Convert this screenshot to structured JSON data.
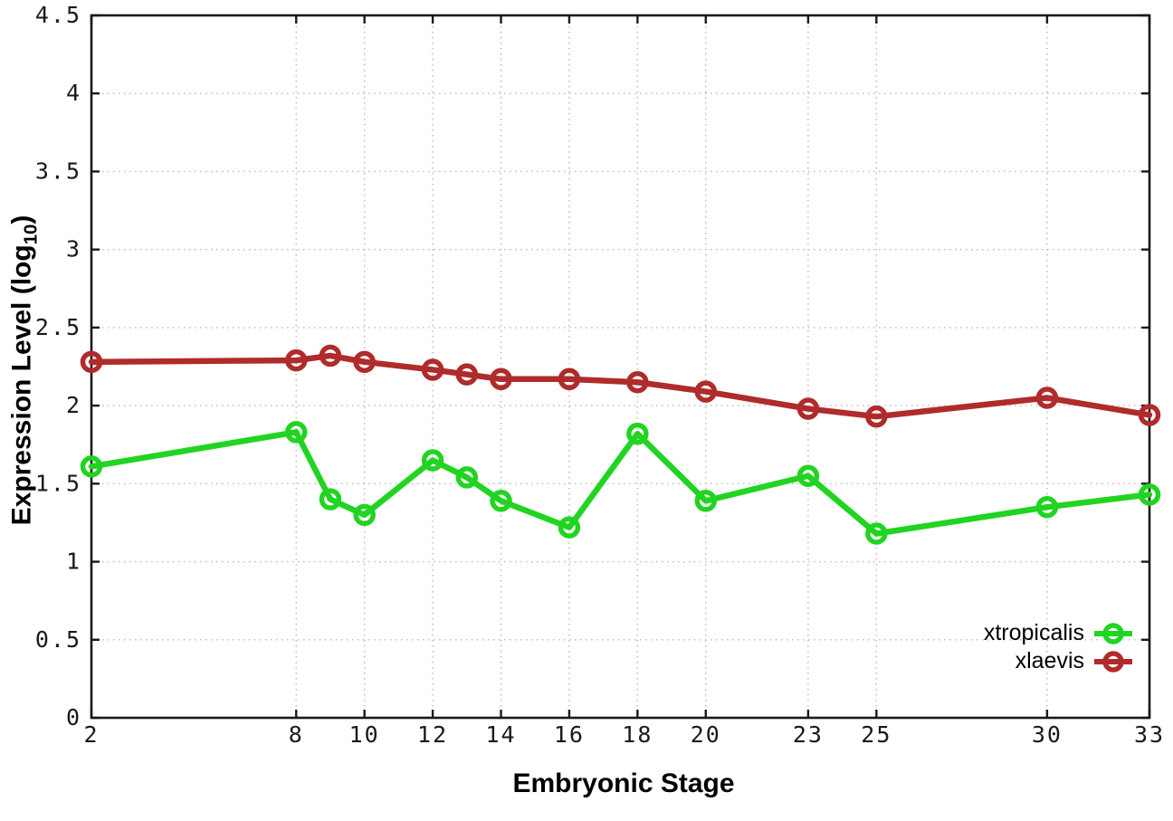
{
  "chart_data": {
    "type": "line",
    "title": "",
    "xlabel": "Embryonic Stage",
    "ylabel_prefix": "Expression Level (log",
    "ylabel_sub": "10",
    "ylabel_suffix": ")",
    "xlim": [
      2,
      33
    ],
    "ylim": [
      0,
      4.5
    ],
    "xticks": [
      2,
      8,
      10,
      12,
      14,
      16,
      18,
      20,
      23,
      25,
      30,
      33
    ],
    "yticks": [
      0,
      0.5,
      1,
      1.5,
      2,
      2.5,
      3,
      3.5,
      4,
      4.5
    ],
    "grid": true,
    "legend_position": "bottom-right",
    "x": [
      2,
      8,
      9,
      10,
      12,
      13,
      14,
      16,
      18,
      20,
      23,
      25,
      30,
      33
    ],
    "series": [
      {
        "name": "xtropicalis",
        "color": "#22d422",
        "values": [
          1.61,
          1.83,
          1.4,
          1.3,
          1.65,
          1.54,
          1.39,
          1.22,
          1.82,
          1.39,
          1.55,
          1.18,
          1.35,
          1.43
        ]
      },
      {
        "name": "xlaevis",
        "color": "#b02b2b",
        "values": [
          2.28,
          2.29,
          2.32,
          2.28,
          2.23,
          2.2,
          2.17,
          2.17,
          2.15,
          2.09,
          1.98,
          1.93,
          2.05,
          1.94
        ]
      }
    ],
    "axis_color": "#1a1a1a",
    "grid_color": "#b8b8b8",
    "tick_label_color": "#1a1a1a"
  }
}
